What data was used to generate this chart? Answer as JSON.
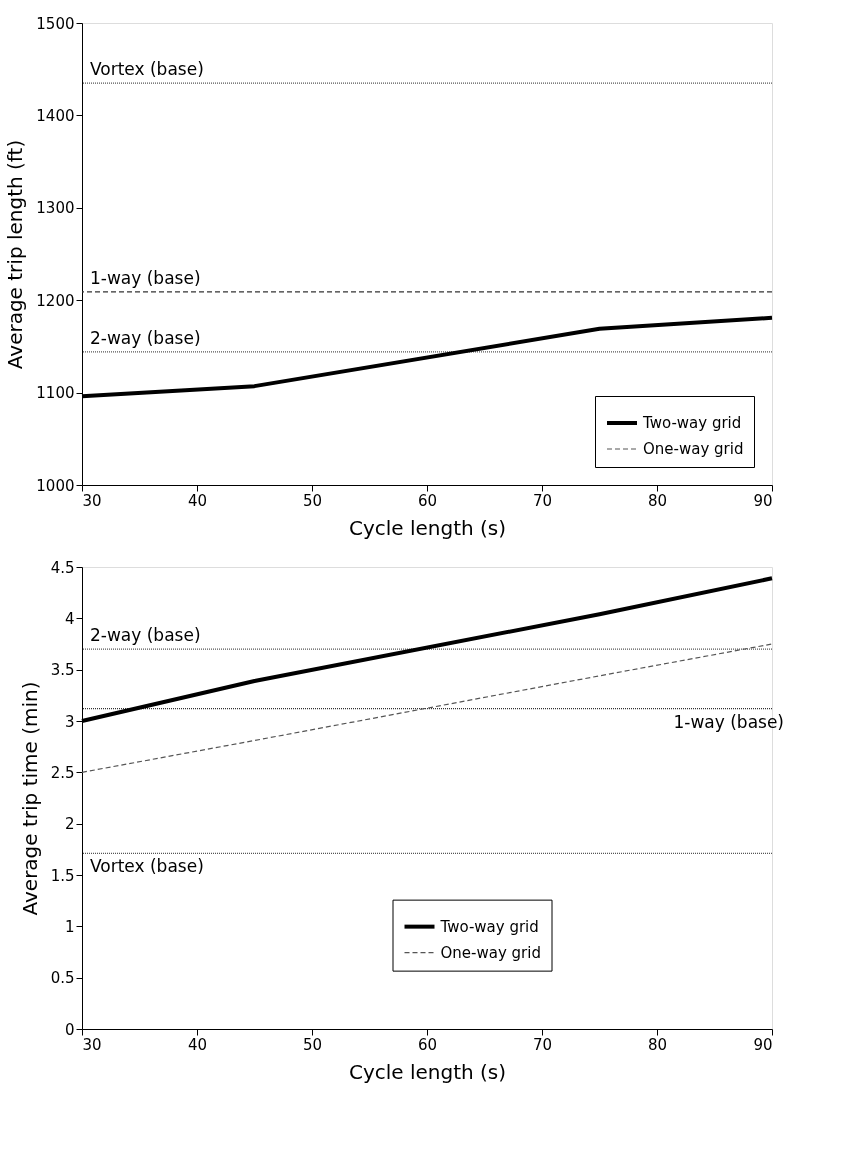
{
  "chart_data": [
    {
      "type": "line",
      "xlabel": "Cycle length (s)",
      "ylabel": "Average trip length (ft)",
      "x": [
        30,
        45,
        75,
        90
      ],
      "series": [
        {
          "name": "Two-way grid",
          "color": "#000000",
          "line_style": "solid",
          "values": [
            1096,
            1107,
            1169,
            1181
          ]
        },
        {
          "name": "One-way grid",
          "color": "#555555",
          "line_style": "dashed",
          "values": [
            null,
            null,
            null,
            null
          ]
        }
      ],
      "xlim": [
        30,
        90
      ],
      "xticks": [
        30,
        40,
        50,
        60,
        70,
        80,
        90
      ],
      "ylim": [
        1000,
        1500
      ],
      "yticks": [
        1000,
        1100,
        1200,
        1300,
        1400,
        1500
      ],
      "ref_lines": [
        {
          "axis": "y",
          "value": 1435,
          "label": "Vortex (base)",
          "line_style": "dotted",
          "color": "#555555"
        },
        {
          "axis": "y",
          "value": 1209,
          "label": "1-way (base)",
          "line_style": "dashed",
          "color": "#333333"
        },
        {
          "axis": "y",
          "value": 1144,
          "label": "2-way (base)",
          "line_style": "dotted",
          "color": "#555555"
        }
      ],
      "legend": "bottom right",
      "grid": false,
      "marker": "none"
    },
    {
      "type": "line",
      "xlabel": "Cycle length (s)",
      "ylabel": "Average trip time (min)",
      "x": [
        30,
        45,
        75,
        90
      ],
      "series": [
        {
          "name": "Two-way grid",
          "color": "#000000",
          "line_style": "solid",
          "values": [
            3.0,
            3.39,
            4.04,
            4.39
          ]
        },
        {
          "name": "One-way grid",
          "color": "#555555",
          "line_style": "dashed",
          "values": [
            2.5,
            2.81,
            3.44,
            3.75
          ]
        }
      ],
      "xlim": [
        30,
        90
      ],
      "xticks": [
        30,
        40,
        50,
        60,
        70,
        80,
        90
      ],
      "ylim": [
        0,
        4.5
      ],
      "yticks": [
        0,
        0.5,
        1,
        1.5,
        2,
        2.5,
        3,
        3.5,
        4,
        4.5
      ],
      "ref_lines": [
        {
          "axis": "y",
          "value": 3.7,
          "label": "2-way (base)",
          "line_style": "dotted",
          "color": "#555555"
        },
        {
          "axis": "y",
          "value": 3.12,
          "label": "1-way (base)",
          "line_style": "dotted",
          "color": "#333333"
        },
        {
          "axis": "y",
          "value": 1.71,
          "label": "Vortex (base)",
          "line_style": "dotted",
          "color": "#555555"
        }
      ],
      "legend": "bottom",
      "grid": false,
      "marker": "none"
    }
  ]
}
